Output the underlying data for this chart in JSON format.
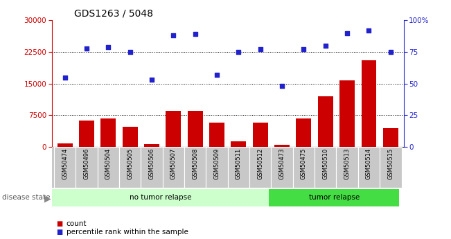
{
  "title": "GDS1263 / 5048",
  "samples": [
    "GSM50474",
    "GSM50496",
    "GSM50504",
    "GSM50505",
    "GSM50506",
    "GSM50507",
    "GSM50508",
    "GSM50509",
    "GSM50511",
    "GSM50512",
    "GSM50473",
    "GSM50475",
    "GSM50510",
    "GSM50513",
    "GSM50514",
    "GSM50515"
  ],
  "counts": [
    900,
    6200,
    6800,
    4800,
    700,
    8500,
    8500,
    5800,
    1300,
    5800,
    500,
    6800,
    12000,
    15800,
    20500,
    4500
  ],
  "percentiles": [
    55,
    78,
    79,
    75,
    53,
    88,
    89,
    57,
    75,
    77,
    48,
    77,
    80,
    90,
    92,
    75
  ],
  "group1_label": "no tumor relapse",
  "group2_label": "tumor relapse",
  "group1_count": 10,
  "group2_count": 6,
  "disease_state_label": "disease state",
  "ylim_left": [
    0,
    30000
  ],
  "ylim_right": [
    0,
    100
  ],
  "yticks_left": [
    0,
    7500,
    15000,
    22500,
    30000
  ],
  "yticks_right": [
    0,
    25,
    50,
    75,
    100
  ],
  "bar_color": "#cc0000",
  "dot_color": "#2222cc",
  "group1_bg": "#ccffcc",
  "group2_bg": "#44dd44",
  "xtick_bg": "#c8c8c8",
  "legend_count_label": "count",
  "legend_pct_label": "percentile rank within the sample",
  "title_fontsize": 10,
  "tick_fontsize": 7.5,
  "label_fontsize": 7.5
}
